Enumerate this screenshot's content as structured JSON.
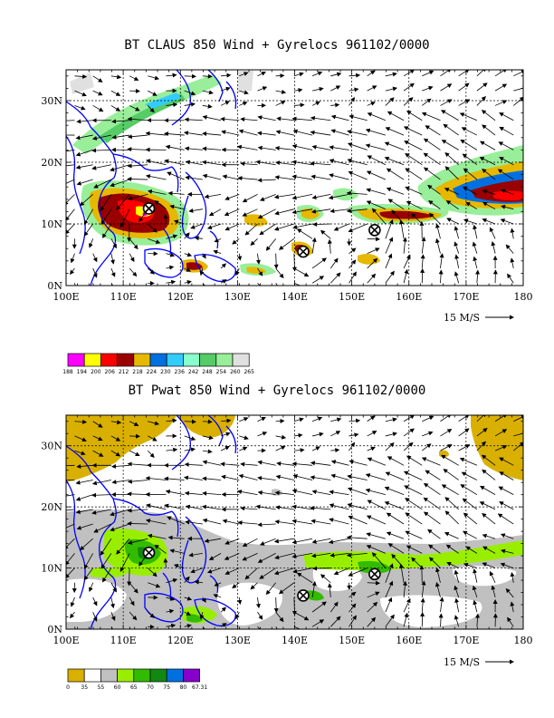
{
  "panels": [
    {
      "id": "claus",
      "title": "BT CLAUS 850 Wind + Gyrelocs 961102/0000",
      "legend_labels": [
        "188",
        "194",
        "200",
        "206",
        "212",
        "218",
        "224",
        "230",
        "236",
        "242",
        "248",
        "254",
        "260",
        "265"
      ],
      "legend_colors": [
        "#ff00ff",
        "#ffff00",
        "#ff0000",
        "#990000",
        "#e6b800",
        "#0070e0",
        "#33ccff",
        "#88ffcc",
        "#55cc66",
        "#99ee99",
        "#e0e0e0"
      ]
    },
    {
      "id": "pwat",
      "title": "BT Pwat 850 Wind + Gyrelocs 961102/0000",
      "legend_labels": [
        "0",
        "35",
        "55",
        "60",
        "65",
        "70",
        "75",
        "80",
        "67.31"
      ],
      "legend_colors": [
        "#d9b000",
        "#ffffff",
        "#c0c0c0",
        "#99ee00",
        "#33bb00",
        "#118811",
        "#0070e0",
        "#8800cc"
      ]
    }
  ],
  "map": {
    "lon_labels": [
      "100E",
      "110E",
      "120E",
      "130E",
      "140E",
      "150E",
      "160E",
      "170E",
      "180"
    ],
    "lat_labels": [
      "0N",
      "10N",
      "20N",
      "30N"
    ],
    "vector_scale_label": "15 M/S",
    "gyre_locations": [
      {
        "lon": 114.5,
        "lat": 12.5
      },
      {
        "lon": 141.5,
        "lat": 5.5
      },
      {
        "lon": 154,
        "lat": 9
      }
    ]
  }
}
